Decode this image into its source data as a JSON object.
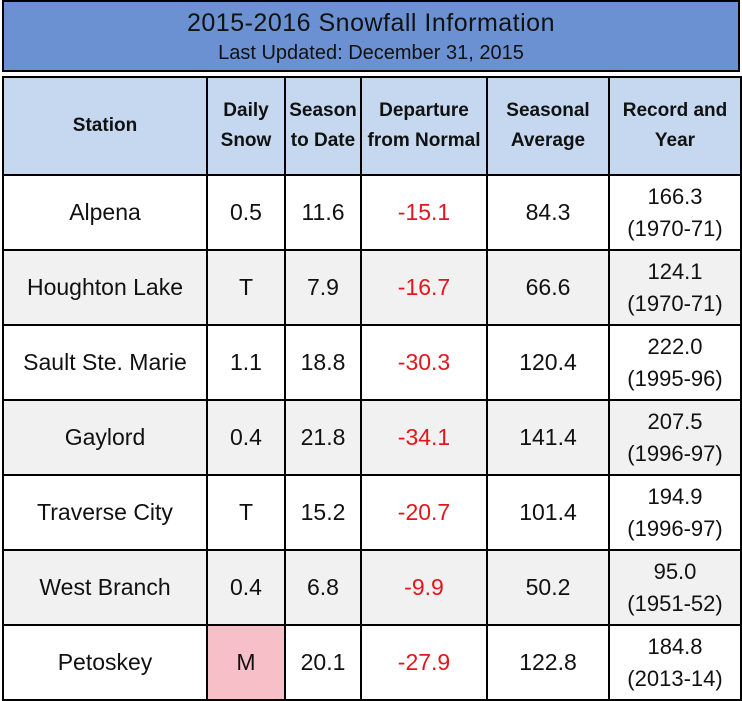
{
  "title": "2015-2016 Snowfall Information",
  "subtitle": "Last Updated:   December 31, 2015",
  "headers": {
    "station": "Station",
    "daily_1": "Daily",
    "daily_2": "Snow",
    "season_1": "Season",
    "season_2": "to Date",
    "dep_1": "Departure",
    "dep_2": "from Normal",
    "avg_1": "Seasonal",
    "avg_2": "Average",
    "rec_1": "Record and",
    "rec_2": "Year"
  },
  "rows": [
    {
      "station": "Alpena",
      "daily": "0.5",
      "season": "11.6",
      "departure": "-15.1",
      "average": "84.3",
      "record": "166.3",
      "year": "(1970-71)"
    },
    {
      "station": "Houghton Lake",
      "daily": "T",
      "season": "7.9",
      "departure": "-16.7",
      "average": "66.6",
      "record": "124.1",
      "year": "(1970-71)"
    },
    {
      "station": "Sault Ste. Marie",
      "daily": "1.1",
      "season": "18.8",
      "departure": "-30.3",
      "average": "120.4",
      "record": "222.0",
      "year": "(1995-96)"
    },
    {
      "station": "Gaylord",
      "daily": "0.4",
      "season": "21.8",
      "departure": "-34.1",
      "average": "141.4",
      "record": "207.5",
      "year": "(1996-97)"
    },
    {
      "station": "Traverse City",
      "daily": "T",
      "season": "15.2",
      "departure": "-20.7",
      "average": "101.4",
      "record": "194.9",
      "year": "(1996-97)"
    },
    {
      "station": "West Branch",
      "daily": "0.4",
      "season": "6.8",
      "departure": "-9.9",
      "average": "50.2",
      "record": "95.0",
      "year": "(1951-52)"
    },
    {
      "station": "Petoskey",
      "daily": "M",
      "season": "20.1",
      "departure": "-27.9",
      "average": "122.8",
      "record": "184.8",
      "year": "(2013-14)"
    }
  ],
  "colors": {
    "header_bg": "#6c91d2",
    "col_header_bg": "#c5d8f0",
    "negative": "#e3161c",
    "missing": "#f7c0c9"
  }
}
